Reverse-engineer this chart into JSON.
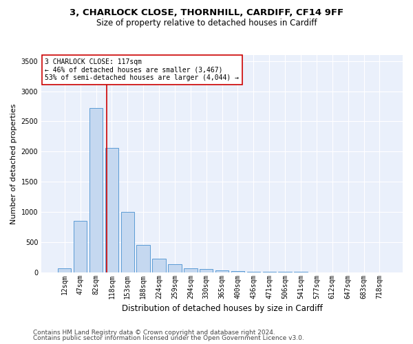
{
  "title1": "3, CHARLOCK CLOSE, THORNHILL, CARDIFF, CF14 9FF",
  "title2": "Size of property relative to detached houses in Cardiff",
  "xlabel": "Distribution of detached houses by size in Cardiff",
  "ylabel": "Number of detached properties",
  "footer1": "Contains HM Land Registry data © Crown copyright and database right 2024.",
  "footer2": "Contains public sector information licensed under the Open Government Licence v3.0.",
  "categories": [
    "12sqm",
    "47sqm",
    "82sqm",
    "118sqm",
    "153sqm",
    "188sqm",
    "224sqm",
    "259sqm",
    "294sqm",
    "330sqm",
    "365sqm",
    "400sqm",
    "436sqm",
    "471sqm",
    "506sqm",
    "541sqm",
    "577sqm",
    "612sqm",
    "647sqm",
    "683sqm",
    "718sqm"
  ],
  "values": [
    60,
    850,
    2720,
    2060,
    1000,
    450,
    220,
    130,
    60,
    50,
    30,
    20,
    10,
    5,
    3,
    2,
    1,
    1,
    0,
    0,
    0
  ],
  "bar_color": "#c5d8f0",
  "bar_edge_color": "#5b9bd5",
  "background_color": "#eaf0fb",
  "grid_color": "#ffffff",
  "annotation_box_text1": "3 CHARLOCK CLOSE: 117sqm",
  "annotation_box_text2": "← 46% of detached houses are smaller (3,467)",
  "annotation_box_text3": "53% of semi-detached houses are larger (4,044) →",
  "red_line_x": 2.67,
  "ylim": [
    0,
    3600
  ],
  "yticks": [
    0,
    500,
    1000,
    1500,
    2000,
    2500,
    3000,
    3500
  ],
  "annotation_color": "#cc0000",
  "title1_fontsize": 9.5,
  "title2_fontsize": 8.5,
  "ylabel_fontsize": 8,
  "xlabel_fontsize": 8.5,
  "tick_fontsize": 7,
  "footer_fontsize": 6.5,
  "annot_fontsize": 7
}
